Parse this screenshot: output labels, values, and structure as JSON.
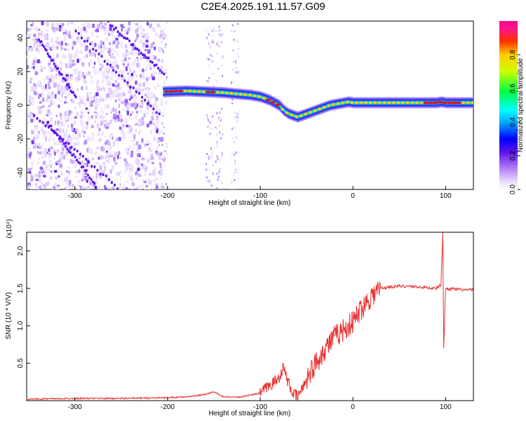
{
  "title": "C2E4.2025.191.11.57.G09",
  "colors": {
    "snr_line": "#e8312f",
    "trace_core": "#d8152a",
    "noise_purple": "#7a3cf0"
  },
  "chart_data": [
    {
      "type": "heatmap",
      "name": "spectrogram",
      "xlabel": "Height of straight line (km)",
      "ylabel": "Frequency (Hz)",
      "xlim": [
        -352,
        130
      ],
      "ylim": [
        -50,
        50
      ],
      "xticks": [
        -300,
        -200,
        -100,
        0,
        100
      ],
      "xtick_labels": [
        "-300",
        "-200",
        "-100",
        "0",
        "100"
      ],
      "yticks": [
        -40,
        -20,
        0,
        20,
        40
      ],
      "ytick_labels": [
        "-40",
        "-20",
        "0",
        "20",
        "40"
      ],
      "colorbar": {
        "label": "Normalized spectral amplitude",
        "range": [
          0,
          1
        ],
        "ticks": [
          0.0,
          0.2,
          0.4,
          0.6,
          0.8
        ],
        "tick_labels": [
          "0.0",
          "0.2",
          "0.4",
          "0.6",
          "0.8"
        ]
      },
      "trace": {
        "x": [
          -205,
          -180,
          -160,
          -140,
          -120,
          -110,
          -100,
          -90,
          -80,
          -75,
          -70,
          -65,
          -60,
          -55,
          -50,
          -45,
          -40,
          -35,
          -30,
          -25,
          -20,
          -15,
          -10,
          -5,
          0,
          10,
          20,
          40,
          60,
          80,
          90,
          95,
          100,
          110,
          130
        ],
        "y": [
          8,
          8.5,
          8,
          7.5,
          6.5,
          6,
          5,
          3,
          0,
          -3,
          -5,
          -6,
          -7,
          -6,
          -5,
          -4,
          -3,
          -2,
          -1,
          0,
          0.5,
          1,
          1.5,
          2,
          1.5,
          1.5,
          1.5,
          1.5,
          1.5,
          1.5,
          1.5,
          2,
          1.5,
          1.5,
          1.5
        ]
      }
    },
    {
      "type": "line",
      "name": "snr",
      "xlabel": "Height of straight line (km)",
      "ylabel": "SNR (10 * V/V)",
      "multiplier_label": "(x10⁴)",
      "xlim": [
        -352,
        130
      ],
      "ylim": [
        0,
        2.25
      ],
      "xticks": [
        -300,
        -200,
        -100,
        0,
        100
      ],
      "xtick_labels": [
        "-300",
        "-200",
        "-100",
        "0",
        "100"
      ],
      "yticks": [
        0.5,
        1.0,
        1.5,
        2.0
      ],
      "ytick_labels": [
        "0.5",
        "1.0",
        "1.5",
        "2.0"
      ],
      "x": [
        -352,
        -300,
        -250,
        -200,
        -180,
        -160,
        -150,
        -140,
        -120,
        -100,
        -90,
        -80,
        -75,
        -70,
        -65,
        -60,
        -55,
        -50,
        -40,
        -30,
        -20,
        -10,
        0,
        10,
        20,
        30,
        40,
        50,
        60,
        70,
        80,
        90,
        95,
        97,
        98,
        100,
        110,
        120,
        130
      ],
      "y": [
        0.02,
        0.03,
        0.03,
        0.04,
        0.05,
        0.08,
        0.12,
        0.05,
        0.05,
        0.1,
        0.2,
        0.3,
        0.45,
        0.25,
        0.1,
        0.05,
        0.15,
        0.3,
        0.5,
        0.7,
        0.85,
        0.95,
        1.05,
        1.25,
        1.4,
        1.5,
        1.52,
        1.53,
        1.53,
        1.52,
        1.51,
        1.5,
        1.55,
        2.25,
        0.7,
        1.5,
        1.49,
        1.48,
        1.48
      ]
    }
  ]
}
